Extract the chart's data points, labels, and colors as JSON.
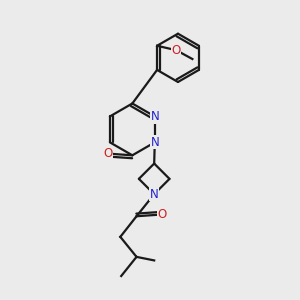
{
  "bg_color": "#ebebeb",
  "bond_color": "#1a1a1a",
  "n_color": "#2222cc",
  "o_color": "#cc2222",
  "line_width": 1.6,
  "font_size": 8.5,
  "fig_size": [
    3.0,
    3.0
  ],
  "dpi": 100,
  "xlim": [
    0,
    10
  ],
  "ylim": [
    0,
    10
  ]
}
